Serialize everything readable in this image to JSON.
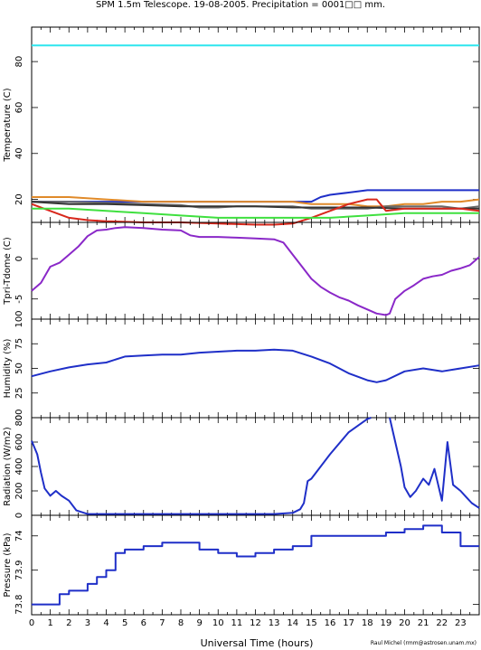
{
  "page": {
    "title": "SPM 1.5m Telescope. 19-08-2005. Precipitation = 0001□□ mm.",
    "xlabel": "Universal Time (hours)",
    "credit": "Raul Michel (rmm@astrosen.unam.mx)",
    "x_ticks": [
      "0",
      "1",
      "2",
      "3",
      "4",
      "5",
      "6",
      "7",
      "8",
      "9",
      "10",
      "11",
      "12",
      "13",
      "14",
      "15",
      "16",
      "17",
      "18",
      "19",
      "20",
      "21",
      "22",
      "23"
    ]
  },
  "colors": {
    "blue": "#1f2fc8",
    "purple": "#8a28c8",
    "red": "#d8281c",
    "green": "#3fe03f",
    "orange": "#e08a2a",
    "gray": "#6a6a6a",
    "black": "#333333",
    "cyan": "#2ee6ee"
  },
  "chart_data": [
    {
      "type": "line",
      "ylabel": "Temperature (C)",
      "ylim": [
        10,
        95
      ],
      "y_ticks": [
        "20",
        "40",
        "60",
        "80"
      ],
      "xlim": [
        0,
        24
      ],
      "series": [
        {
          "color": "cyan",
          "x": [
            0,
            24
          ],
          "y": [
            87,
            87
          ]
        },
        {
          "color": "blue",
          "x": [
            0,
            2,
            4,
            6,
            8,
            10,
            12,
            14,
            15,
            15.5,
            16,
            17,
            18,
            19,
            20,
            22,
            24
          ],
          "y": [
            19,
            19,
            19,
            19,
            19,
            19,
            19,
            19,
            19,
            21,
            22,
            23,
            24,
            24,
            24,
            24,
            24
          ]
        },
        {
          "color": "orange",
          "x": [
            0,
            2,
            4,
            6,
            8,
            10,
            12,
            14,
            15,
            16,
            17,
            18,
            19,
            20,
            21,
            22,
            23,
            24
          ],
          "y": [
            21,
            21,
            20,
            19,
            19,
            19,
            19,
            19,
            18,
            18,
            18,
            17,
            17,
            18,
            18,
            19,
            19,
            20
          ]
        },
        {
          "color": "gray",
          "x": [
            0,
            2,
            4,
            6,
            8,
            9,
            10,
            11,
            12,
            13,
            14,
            15,
            16,
            17,
            18,
            19,
            20,
            21,
            22,
            23,
            24
          ],
          "y": [
            19,
            19,
            18.5,
            18,
            17.5,
            16.5,
            16.5,
            17,
            17,
            17,
            17,
            16,
            16,
            16,
            16,
            17,
            17,
            17,
            17,
            16,
            17
          ]
        },
        {
          "color": "black",
          "x": [
            0,
            2,
            4,
            6,
            8,
            10,
            12,
            14,
            16,
            18,
            20,
            22,
            24
          ],
          "y": [
            19,
            18,
            18,
            17.5,
            17,
            17,
            17,
            16.5,
            16.5,
            16.5,
            16,
            16,
            16
          ]
        },
        {
          "color": "red",
          "x": [
            0,
            1,
            2,
            3,
            4,
            6,
            8,
            10,
            12,
            13,
            14,
            15,
            16,
            17,
            18,
            18.5,
            19,
            20,
            21,
            22,
            23,
            24
          ],
          "y": [
            18,
            15,
            12,
            11,
            10.5,
            10,
            10,
            9.5,
            9,
            9,
            9.5,
            12,
            15,
            18,
            20,
            20,
            15,
            16,
            16,
            16,
            16,
            15
          ]
        },
        {
          "color": "green",
          "x": [
            0,
            2,
            4,
            6,
            8,
            10,
            12,
            14,
            16,
            18,
            20,
            22,
            24
          ],
          "y": [
            16,
            16,
            15,
            14,
            13,
            12,
            12,
            12,
            12,
            13,
            14,
            14,
            14
          ]
        }
      ]
    },
    {
      "type": "line",
      "ylabel": "Tpri-Tdome (C)",
      "ylim": [
        -7.5,
        4.5
      ],
      "y_ticks": [
        "-5",
        "0"
      ],
      "xlim": [
        0,
        24
      ],
      "series": [
        {
          "color": "purple",
          "x": [
            0,
            0.5,
            1,
            1.5,
            2,
            2.5,
            3,
            3.5,
            4,
            4.5,
            5,
            6,
            7,
            8,
            8.5,
            9,
            10,
            11,
            12,
            13,
            13.5,
            14,
            14.5,
            15,
            15.5,
            16,
            16.5,
            17,
            17.5,
            18,
            18.5,
            19,
            19.2,
            19.5,
            20,
            20.5,
            21,
            21.5,
            22,
            22.5,
            23,
            23.5,
            24
          ],
          "y": [
            -4,
            -3,
            -1,
            -0.5,
            0.5,
            1.5,
            2.8,
            3.5,
            3.6,
            3.8,
            3.9,
            3.8,
            3.6,
            3.5,
            2.9,
            2.7,
            2.7,
            2.6,
            2.5,
            2.4,
            2,
            0.5,
            -1,
            -2.5,
            -3.5,
            -4.2,
            -4.8,
            -5.2,
            -5.8,
            -6.3,
            -6.8,
            -7,
            -6.8,
            -5,
            -4,
            -3.3,
            -2.5,
            -2.2,
            -2,
            -1.5,
            -1.2,
            -0.8,
            0.2
          ]
        }
      ]
    },
    {
      "type": "line",
      "ylabel": "Humidity (%)",
      "ylim": [
        0,
        100
      ],
      "y_ticks": [
        "0",
        "25",
        "50",
        "75",
        "100"
      ],
      "xlim": [
        0,
        24
      ],
      "series": [
        {
          "color": "blue",
          "x": [
            0,
            1,
            2,
            3,
            4,
            5,
            6,
            7,
            8,
            9,
            10,
            11,
            12,
            13,
            14,
            15,
            16,
            17,
            18,
            18.5,
            19,
            20,
            21,
            22,
            23,
            24
          ],
          "y": [
            42,
            47,
            51,
            54,
            56,
            62,
            63,
            64,
            64,
            66,
            67,
            68,
            68,
            69,
            68,
            62,
            55,
            45,
            38,
            36,
            38,
            47,
            50,
            47,
            50,
            53
          ]
        }
      ]
    },
    {
      "type": "line",
      "ylabel": "Radiation (W/m2)",
      "ylim": [
        0,
        800
      ],
      "y_ticks": [
        "0",
        "200",
        "400",
        "600",
        "800"
      ],
      "xlim": [
        0,
        24
      ],
      "series": [
        {
          "color": "blue",
          "x": [
            0,
            0.3,
            0.5,
            0.7,
            1,
            1.3,
            1.6,
            2,
            2.4,
            3,
            4,
            6,
            8,
            10,
            12,
            13,
            14,
            14.4,
            14.6,
            14.8,
            15,
            16,
            17,
            18,
            18.2
          ],
          "y": [
            610,
            500,
            350,
            220,
            160,
            200,
            160,
            120,
            40,
            10,
            10,
            10,
            10,
            10,
            10,
            10,
            20,
            50,
            100,
            280,
            300,
            500,
            680,
            790,
            800
          ]
        },
        {
          "color": "blue",
          "x": [
            19.2,
            19.5,
            19.8,
            20,
            20.3,
            20.6,
            21,
            21.3,
            21.6,
            22,
            22.3,
            22.6,
            23,
            23.3,
            23.6,
            24
          ],
          "y": [
            800,
            600,
            400,
            230,
            150,
            200,
            300,
            250,
            380,
            120,
            600,
            250,
            200,
            150,
            100,
            60
          ]
        }
      ]
    },
    {
      "type": "line",
      "ylabel": "Pressure (kPa)",
      "ylim": [
        73.77,
        74.06
      ],
      "y_ticks": [
        "73.8",
        "73.9",
        "74"
      ],
      "xlim": [
        0,
        24
      ],
      "series": [
        {
          "color": "blue",
          "x": [
            0,
            1.5,
            1.5,
            2,
            2,
            3,
            3,
            3.5,
            3.5,
            4,
            4,
            4.5,
            4.5,
            5,
            5,
            6,
            6,
            7,
            7,
            8,
            8,
            9,
            9,
            10,
            10,
            11,
            11,
            12,
            12,
            13,
            13,
            14,
            14,
            15,
            15,
            19,
            19,
            20,
            20,
            21,
            21,
            22,
            22,
            23,
            23,
            24
          ],
          "y": [
            73.8,
            73.8,
            73.83,
            73.83,
            73.84,
            73.84,
            73.86,
            73.86,
            73.88,
            73.88,
            73.9,
            73.9,
            73.95,
            73.95,
            73.96,
            73.96,
            73.97,
            73.97,
            73.98,
            73.98,
            73.98,
            73.98,
            73.96,
            73.96,
            73.95,
            73.95,
            73.94,
            73.94,
            73.95,
            73.95,
            73.96,
            73.96,
            73.97,
            73.97,
            74,
            74,
            74.01,
            74.01,
            74.02,
            74.02,
            74.03,
            74.03,
            74.01,
            74.01,
            73.97,
            73.97
          ]
        }
      ]
    }
  ]
}
